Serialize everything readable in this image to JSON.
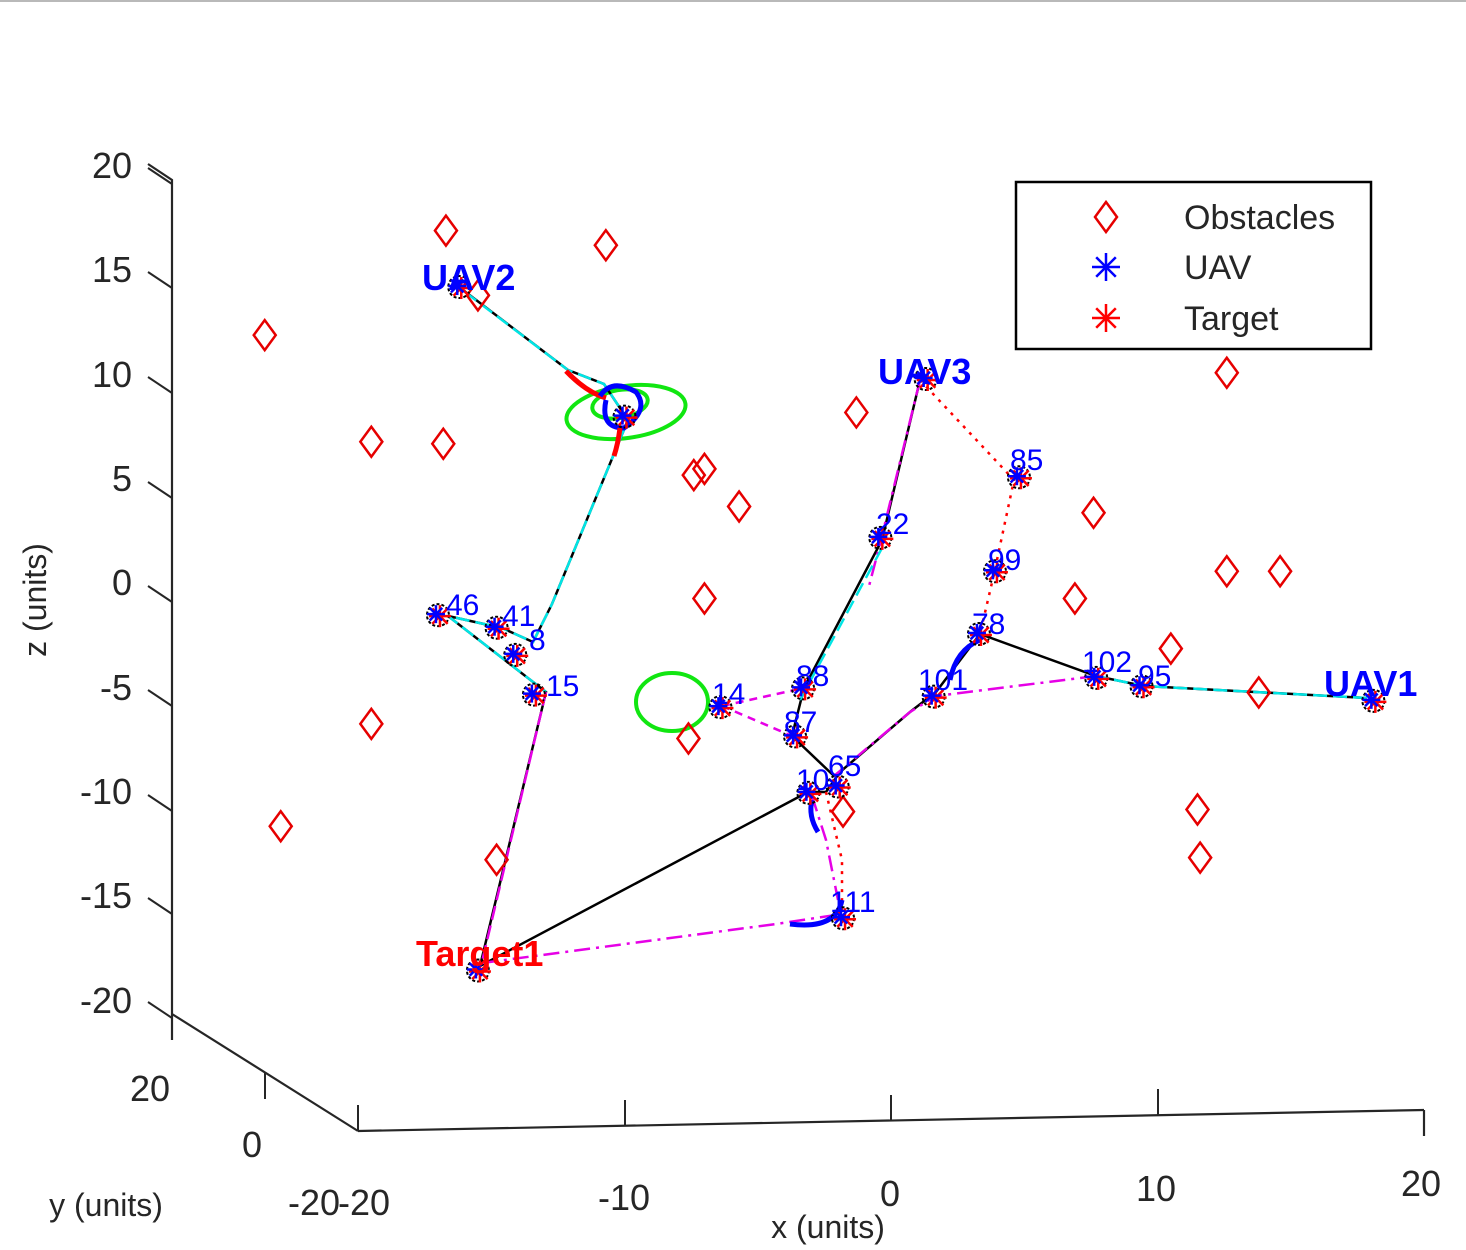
{
  "chart_data": {
    "type": "scatter",
    "title": "",
    "xlabel": "x (units)",
    "ylabel": "y (units)",
    "zlabel": "z (units)",
    "xlim": [
      -20,
      20
    ],
    "ylim": [
      -20,
      20
    ],
    "zlim": [
      -20,
      20
    ],
    "x_ticks": [
      "-20",
      "-10",
      "0",
      "10",
      "20"
    ],
    "y_ticks": [
      "-20",
      "0",
      "20"
    ],
    "z_ticks": [
      "20",
      "15",
      "10",
      "5",
      "0",
      "-5",
      "-10",
      "-15",
      "-20"
    ],
    "legend": {
      "placement": "top-right",
      "entries": [
        {
          "label": "Obstacles",
          "marker": "diamond",
          "color": "#e60000"
        },
        {
          "label": "UAV",
          "marker": "asterisk",
          "color": "#0000ff"
        },
        {
          "label": "Target",
          "marker": "asterisk",
          "color": "#ff0000"
        }
      ]
    },
    "labels": {
      "uav1": "UAV1",
      "uav2": "UAV2",
      "uav3": "UAV3",
      "target1": "Target1"
    },
    "colors": {
      "obstacle": "#e60000",
      "uav": "#0000ff",
      "target": "#ff0000",
      "path_black": "#000000",
      "path_cyan": "#00e5e5",
      "path_magenta": "#e600e6",
      "path_red": "#ff0000",
      "ellipse": "#11e611"
    },
    "obstacles_xz": [
      [
        -23.5,
        12.1
      ],
      [
        -16.7,
        17.1
      ],
      [
        -10.7,
        16.4
      ],
      [
        -15.5,
        14.0
      ],
      [
        -19.5,
        7.0
      ],
      [
        -16.8,
        6.9
      ],
      [
        -7.4,
        5.4
      ],
      [
        -7.0,
        5.7
      ],
      [
        -5.7,
        3.9
      ],
      [
        -7.0,
        -0.5
      ],
      [
        -1.3,
        8.4
      ],
      [
        -19.5,
        -6.5
      ],
      [
        -7.6,
        -7.2
      ],
      [
        -22.9,
        -11.4
      ],
      [
        -14.8,
        -13.0
      ],
      [
        -1.8,
        -10.7
      ],
      [
        7.6,
        3.6
      ],
      [
        6.9,
        -0.5
      ],
      [
        10.5,
        -2.9
      ],
      [
        12.6,
        10.3
      ],
      [
        12.6,
        0.8
      ],
      [
        14.6,
        0.8
      ],
      [
        13.8,
        -5.0
      ],
      [
        11.5,
        -10.6
      ],
      [
        11.6,
        -12.9
      ]
    ],
    "waypoints": [
      {
        "name": "UAV2",
        "x": -16.2,
        "z": 14.4
      },
      {
        "name": "",
        "x": -10.0,
        "z": 8.2
      },
      {
        "name": "46",
        "x": -17.0,
        "z": -1.3
      },
      {
        "name": "41",
        "x": -14.8,
        "z": -1.9
      },
      {
        "name": "8",
        "x": -14.1,
        "z": -3.2
      },
      {
        "name": "15",
        "x": -13.4,
        "z": -5.1
      },
      {
        "name": "Target1",
        "x": -15.5,
        "z": -18.3
      },
      {
        "name": "14",
        "x": -6.4,
        "z": -5.7
      },
      {
        "name": "88",
        "x": -3.3,
        "z": -4.8
      },
      {
        "name": "87",
        "x": -3.6,
        "z": -7.1
      },
      {
        "name": "65",
        "x": -2.0,
        "z": -9.5
      },
      {
        "name": "10",
        "x": -3.1,
        "z": -9.8
      },
      {
        "name": "111",
        "x": -1.8,
        "z": -15.8
      },
      {
        "name": "22",
        "x": -0.4,
        "z": 2.4
      },
      {
        "name": "UAV3",
        "x": 1.3,
        "z": 10.0
      },
      {
        "name": "85",
        "x": 4.8,
        "z": 5.3
      },
      {
        "name": "99",
        "x": 3.9,
        "z": 0.8
      },
      {
        "name": "78",
        "x": 3.3,
        "z": -2.2
      },
      {
        "name": "101",
        "x": 1.6,
        "z": -5.2
      },
      {
        "name": "102",
        "x": 7.7,
        "z": -4.3
      },
      {
        "name": "95",
        "x": 9.4,
        "z": -4.7
      },
      {
        "name": "UAV1",
        "x": 18.1,
        "z": -5.4
      }
    ]
  }
}
